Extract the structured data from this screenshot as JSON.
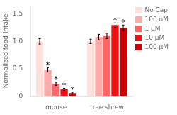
{
  "chart_data": {
    "type": "bar",
    "y_label": "Normalized food-intake",
    "categories": [
      "mouse",
      "tree shrew"
    ],
    "series": [
      {
        "name": "No Cap",
        "color": "#fde0dc",
        "values": [
          1.0,
          1.0
        ],
        "errors": [
          0.05,
          0.04
        ]
      },
      {
        "name": "100 nM",
        "color": "#ffaaaa",
        "values": [
          0.48,
          1.08
        ],
        "errors": [
          0.04,
          0.05
        ]
      },
      {
        "name": "1 μM",
        "color": "#ff6666",
        "values": [
          0.22,
          1.1
        ],
        "errors": [
          0.03,
          0.05
        ]
      },
      {
        "name": "10 μM",
        "color": "#ee1111",
        "values": [
          0.12,
          1.3
        ],
        "errors": [
          0.02,
          0.04
        ]
      },
      {
        "name": "100 μM",
        "color": "#cc0000",
        "values": [
          0.05,
          1.25
        ],
        "errors": [
          0.015,
          0.05
        ]
      }
    ],
    "annotations": [
      {
        "text": "*",
        "category": "mouse",
        "series": "100 nM"
      },
      {
        "text": "*",
        "category": "mouse",
        "series": "1 μM"
      },
      {
        "text": "*",
        "category": "mouse",
        "series": "10 μM"
      },
      {
        "text": "*",
        "category": "mouse",
        "series": "100 μM"
      },
      {
        "text": "*",
        "category": "tree shrew",
        "series": "10 μM"
      },
      {
        "text": "*",
        "category": "tree shrew",
        "series": "100 μM"
      }
    ],
    "ylim": [
      0,
      1.65
    ],
    "yticks": [
      0,
      0.5,
      {
        "value": 1.0,
        "label": "1.0"
      },
      1.5
    ],
    "grid": false,
    "legend": "right"
  }
}
